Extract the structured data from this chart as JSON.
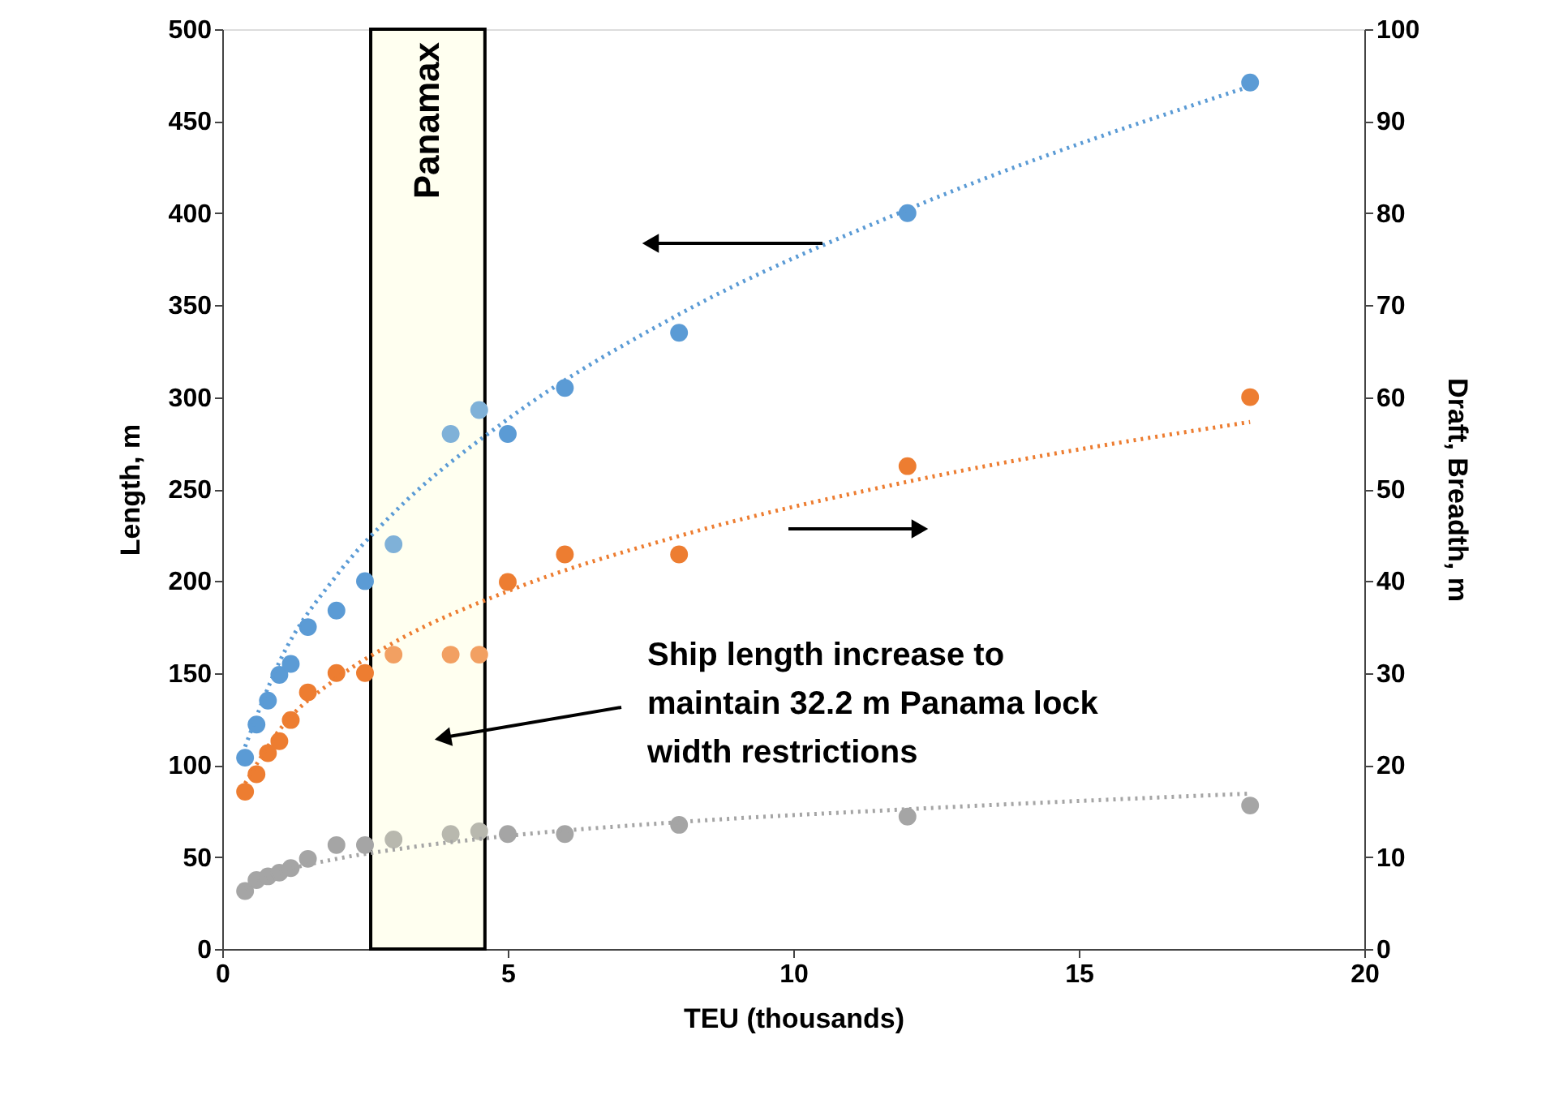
{
  "chart_data": {
    "type": "scatter",
    "xlabel": "TEU (thousands)",
    "ylabel": "Length, m",
    "y2label": "Draft, Breadth, m",
    "x": [
      0.4,
      0.6,
      0.8,
      1.0,
      1.2,
      1.5,
      2,
      2.5,
      3,
      4,
      4.5,
      5,
      6,
      8,
      12,
      18
    ],
    "series": [
      {
        "color": "#5b9bd5",
        "colors": [
          null,
          null,
          null,
          null,
          null,
          null,
          null,
          null,
          "#7fb1d8",
          "#7fb1d8",
          "#7fb1d8",
          null,
          null,
          null,
          null,
          null
        ],
        "values": [
          104,
          122,
          135,
          149,
          155,
          175,
          184,
          200,
          220,
          280,
          293,
          280,
          305,
          335,
          400,
          471
        ]
      },
      {
        "axis": "y2",
        "color": "#ed7d31",
        "colors": [
          null,
          null,
          null,
          null,
          null,
          null,
          null,
          null,
          "#f2a062",
          "#f2a062",
          "#f2a062",
          null,
          null,
          null,
          null,
          null
        ],
        "values": [
          17.1,
          19.0,
          21.3,
          22.6,
          24.9,
          27.9,
          30.0,
          30.0,
          32.0,
          32.0,
          32.0,
          39.9,
          42.9,
          42.9,
          52.5,
          60.0
        ]
      },
      {
        "axis": "y2",
        "color": "#a5a5a5",
        "colors": [
          null,
          null,
          null,
          null,
          null,
          null,
          null,
          null,
          "#b8b8ae",
          "#b8b8ae",
          "#b8b8ae",
          null,
          null,
          null,
          null,
          null
        ],
        "values": [
          6.3,
          7.5,
          7.9,
          8.3,
          8.8,
          9.8,
          11.3,
          11.3,
          11.9,
          12.5,
          12.8,
          12.5,
          12.5,
          13.5,
          14.4,
          15.6
        ]
      },
      {
        "type": "line",
        "marker": "none",
        "line_style": "dotted",
        "color": "#5b9bd5",
        "x": [
          0.4,
          1,
          2,
          3,
          5,
          8,
          12,
          18
        ],
        "values": [
          110,
          156,
          203,
          237,
          288,
          345,
          402,
          469
        ]
      },
      {
        "type": "line",
        "marker": "none",
        "line_style": "dotted",
        "axis": "y2",
        "color": "#ed7d31",
        "x": [
          0.4,
          1,
          2,
          3,
          5,
          8,
          12,
          18
        ],
        "values": [
          18.0,
          23.8,
          29.4,
          33.3,
          38.9,
          44.9,
          50.8,
          57.3
        ]
      },
      {
        "type": "line",
        "marker": "none",
        "line_style": "dotted",
        "axis": "y2",
        "color": "#a5a5a5",
        "x": [
          0.4,
          1,
          2,
          3,
          5,
          8,
          12,
          18
        ],
        "values": [
          6.6,
          8.3,
          9.8,
          10.8,
          12.3,
          13.8,
          15.2,
          16.9
        ]
      }
    ],
    "xlim": [
      0,
      20
    ],
    "xticks": [
      0,
      5,
      10,
      15,
      20
    ],
    "ylim": [
      0,
      500
    ],
    "yticks": [
      0,
      50,
      100,
      150,
      200,
      250,
      300,
      350,
      400,
      450,
      500
    ],
    "y2lim": [
      0,
      100
    ],
    "y2ticks": [
      0,
      10,
      20,
      30,
      40,
      50,
      60,
      70,
      80,
      90,
      100
    ],
    "bands": [
      {
        "axis": "x",
        "from": 2.6,
        "to": 4.6,
        "label": "Panamax",
        "color": "#fffff0"
      }
    ],
    "annotations": [
      "Ship length increase to\nmaintain 32.2 m Panama lock\nwidth restrictions"
    ],
    "marker": "circle",
    "grid": false
  }
}
